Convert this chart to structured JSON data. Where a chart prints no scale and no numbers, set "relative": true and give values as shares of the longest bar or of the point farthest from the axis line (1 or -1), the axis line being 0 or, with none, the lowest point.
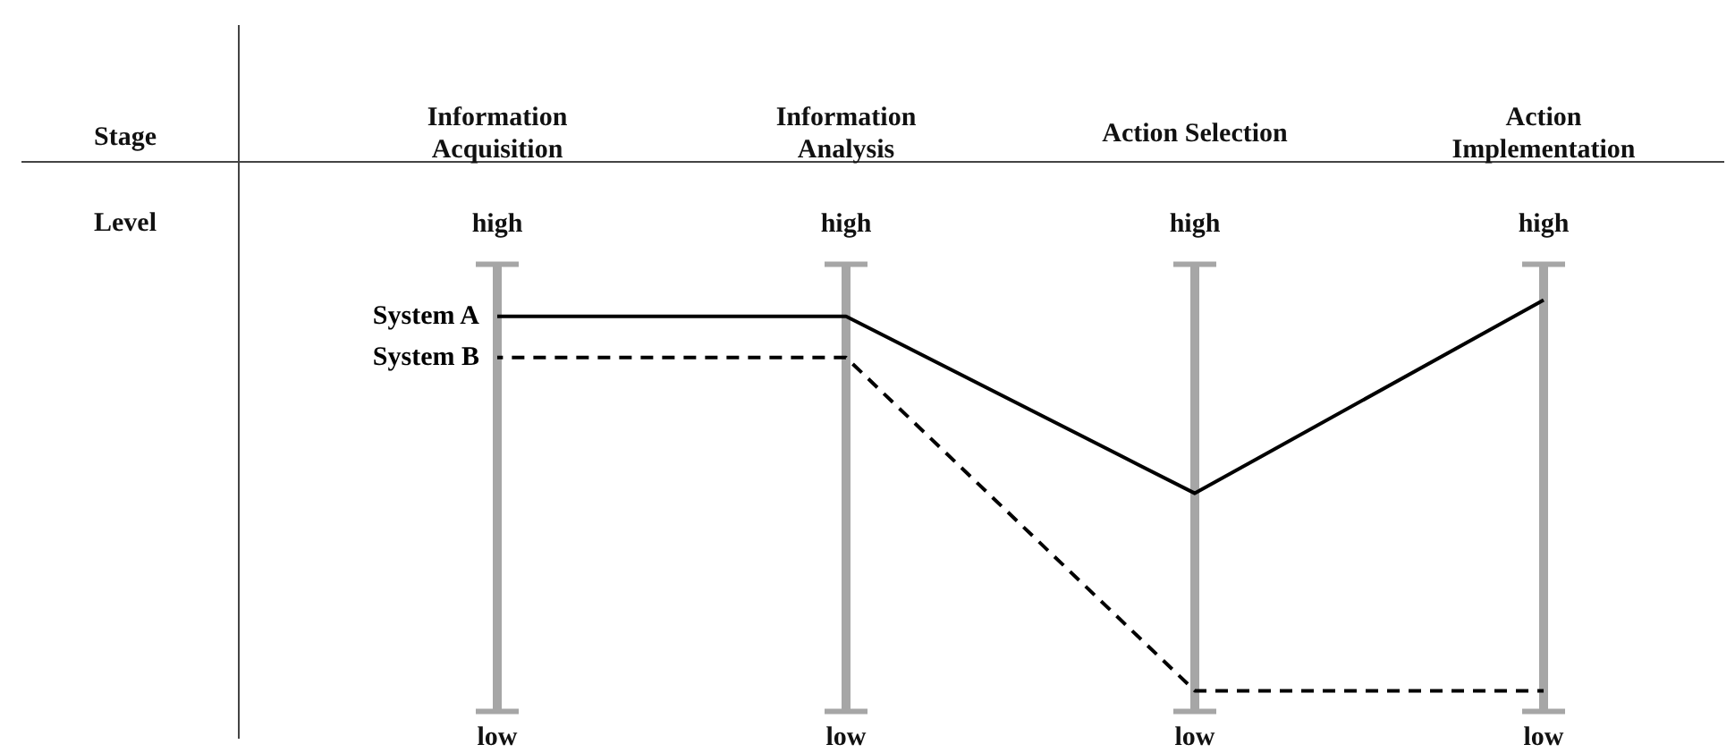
{
  "chart_data": {
    "type": "line",
    "relative": true,
    "grid": "x",
    "categories": [
      "Information Acquisition",
      "Information Analysis",
      "Action Selection",
      "Action Implementation"
    ],
    "annotations": [
      "Stage",
      "Level",
      "high",
      "low"
    ],
    "marker": "none",
    "series": [
      {
        "name": "System A",
        "color": "#000000",
        "line_style": "solid",
        "values": [
          0.96,
          0.96,
          0.53,
          1
        ]
      },
      {
        "name": "System B",
        "color": "#000000",
        "line_style": "dashed",
        "values": [
          0.86,
          0.86,
          0.05,
          0.05
        ]
      }
    ]
  }
}
